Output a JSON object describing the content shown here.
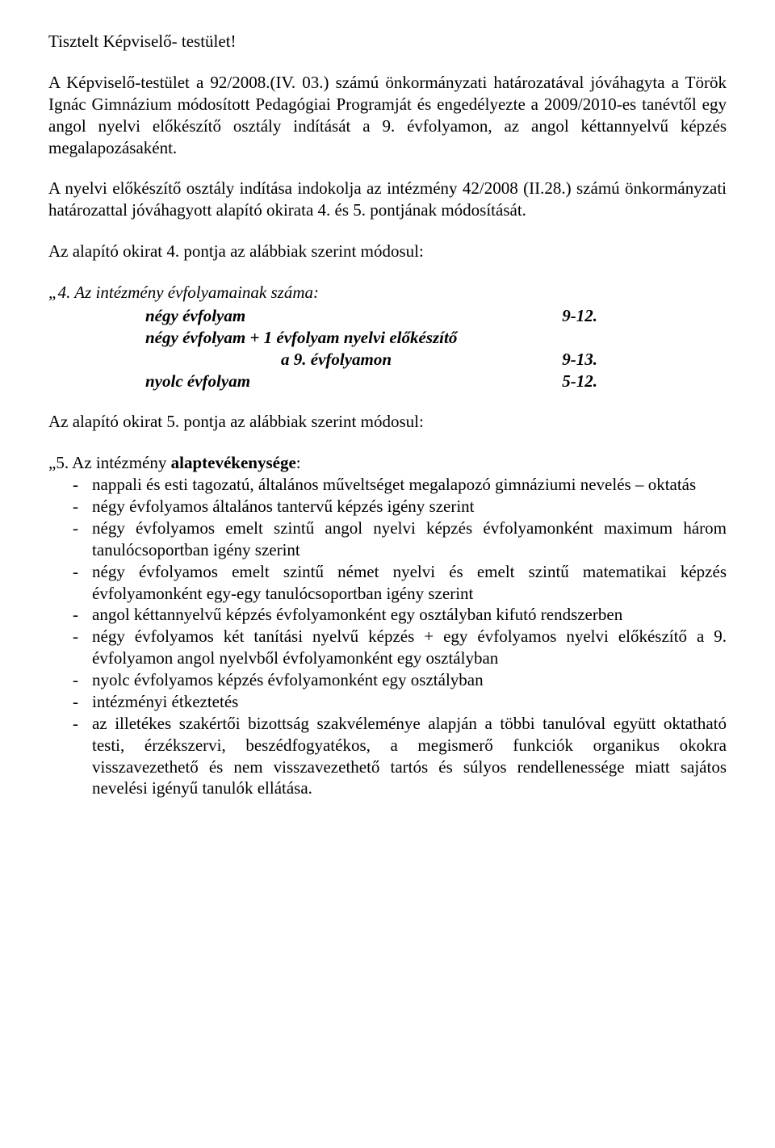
{
  "salutation": "Tisztelt Képviselő- testület!",
  "p1": "A Képviselő-testület a 92/2008.(IV. 03.) számú önkormányzati határozatával jóváhagyta a Török Ignác Gimnázium módosított Pedagógiai Programját és engedélyezte a 2009/2010-es tanévtől egy angol nyelvi előkészítő osztály indítását a 9. évfolyamon, az angol kéttannyelvű képzés megalapozásaként.",
  "p2": "A nyelvi előkészítő osztály indítása indokolja az intézmény 42/2008 (II.28.) számú önkormányzati határozattal jóváhagyott alapító okirata 4. és 5. pontjának módosítását.",
  "p3": "Az alapító okirat 4. pontja az alábbiak szerint módosul:",
  "s4": {
    "lead": "„4. Az intézmény évfolyamainak száma:",
    "lines": [
      {
        "label": "négy évfolyam",
        "value": "9-12."
      },
      {
        "label": "négy évfolyam + 1 évfolyam nyelvi előkészítő",
        "value": ""
      },
      {
        "label": "                                a 9. évfolyamon",
        "value": "9-13."
      },
      {
        "label": "nyolc évfolyam",
        "value": "5-12."
      }
    ]
  },
  "p5": "Az alapító okirat 5. pontja az alábbiak szerint módosul:",
  "s5": {
    "lead_before": "„5. Az intézmény ",
    "lead_bold": "alaptevékenysége",
    "lead_after": ":",
    "items": [
      "nappali és esti tagozatú, általános műveltséget megalapozó gimnáziumi nevelés – oktatás",
      "négy évfolyamos általános tantervű képzés igény szerint",
      "négy évfolyamos emelt szintű angol nyelvi képzés évfolyamonként maximum három tanulócsoportban igény szerint",
      "négy évfolyamos emelt szintű német nyelvi és emelt szintű matematikai képzés évfolyamonként egy-egy tanulócsoportban igény szerint",
      "angol kéttannyelvű képzés évfolyamonként egy osztályban kifutó rendszerben",
      "négy évfolyamos két tanítási nyelvű képzés + egy évfolyamos nyelvi előkészítő a 9. évfolyamon angol nyelvből évfolyamonként egy osztályban",
      "nyolc évfolyamos képzés évfolyamonként egy osztályban",
      "intézményi étkeztetés",
      "az illetékes szakértői bizottság szakvéleménye alapján a többi tanulóval együtt oktatható testi, érzékszervi, beszédfogyatékos, a megismerő funkciók organikus okokra visszavezethető és nem visszavezethető tartós és súlyos rendellenessége miatt sajátos nevelési igényű tanulók ellátása."
    ]
  }
}
